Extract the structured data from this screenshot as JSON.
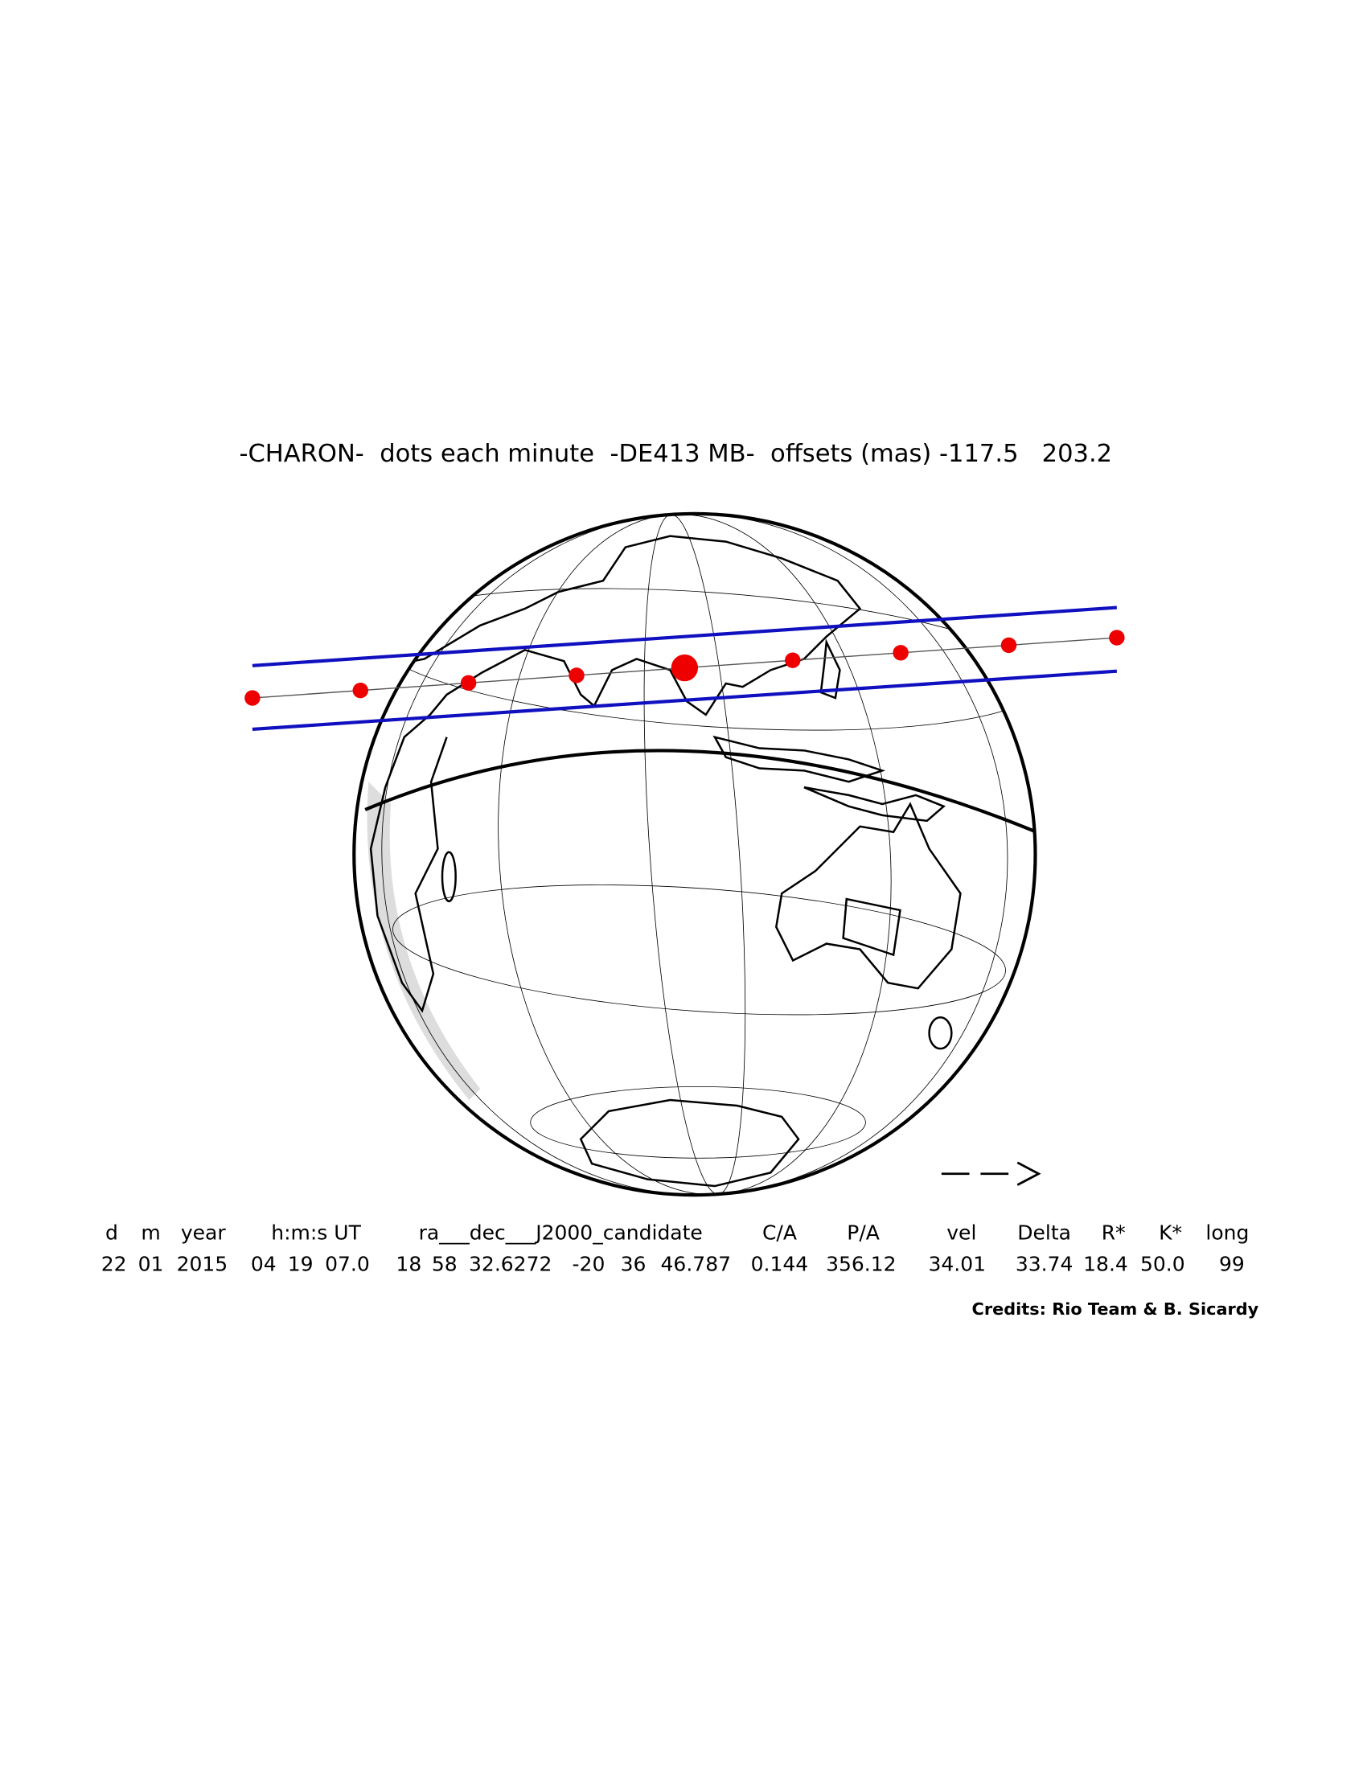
{
  "title": "-CHARON-  dots each minute  -DE413 MB-  offsets (mas) -117.5   203.2",
  "table": {
    "headers": [
      "d",
      "m",
      "year",
      "h:m:s UT",
      "ra___dec___J2000_candidate",
      "C/A",
      "P/A",
      "vel",
      "Delta",
      "R*",
      "K*",
      "long"
    ],
    "values": [
      "22",
      "01",
      "2015",
      "04",
      "19",
      "07.0",
      "18",
      "58",
      "32.6272",
      "-20",
      "36",
      "46.787",
      "0.144",
      "356.12",
      "34.01",
      "33.74",
      "18.4",
      "50.0",
      "99"
    ]
  },
  "credits": "Credits: Rio Team & B. Sicardy"
}
